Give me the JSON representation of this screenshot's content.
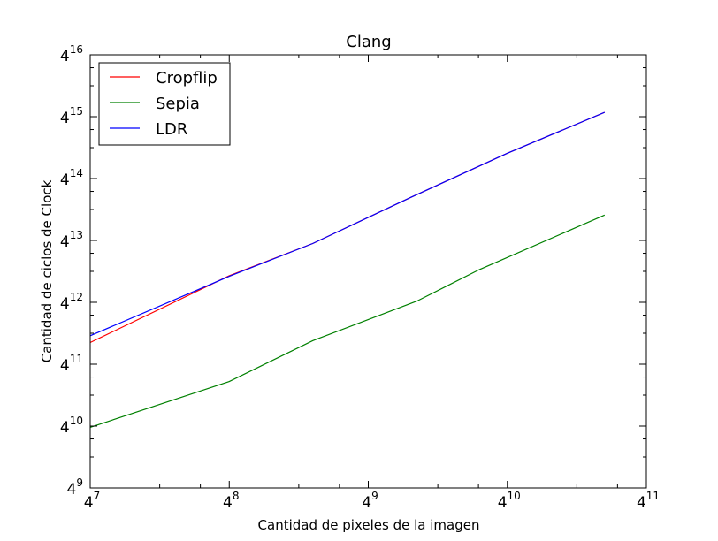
{
  "chart_data": {
    "type": "line",
    "title": "Clang",
    "xlabel": "Cantidad de pixeles de la imagen",
    "ylabel": "Cantidad de ciclos de Clock",
    "scale": "log4",
    "xlim_exp": [
      7,
      11
    ],
    "ylim_exp": [
      9,
      16
    ],
    "grid": false,
    "legend_position": "upper-left",
    "x_ticks": [
      {
        "base": "4",
        "exp": "7"
      },
      {
        "base": "4",
        "exp": "8"
      },
      {
        "base": "4",
        "exp": "9"
      },
      {
        "base": "4",
        "exp": "10"
      },
      {
        "base": "4",
        "exp": "11"
      }
    ],
    "y_ticks": [
      {
        "base": "4",
        "exp": "9"
      },
      {
        "base": "4",
        "exp": "10"
      },
      {
        "base": "4",
        "exp": "11"
      },
      {
        "base": "4",
        "exp": "12"
      },
      {
        "base": "4",
        "exp": "13"
      },
      {
        "base": "4",
        "exp": "14"
      },
      {
        "base": "4",
        "exp": "15"
      },
      {
        "base": "4",
        "exp": "16"
      }
    ],
    "series": [
      {
        "name": "Cropflip",
        "color": "#ff0000",
        "x_exp": [
          7.0,
          8.0,
          8.6,
          9.3,
          10.0,
          10.7
        ],
        "y_exp": [
          11.35,
          12.43,
          12.95,
          13.69,
          14.41,
          15.07
        ]
      },
      {
        "name": "Sepia",
        "color": "#008000",
        "x_exp": [
          7.0,
          8.0,
          8.6,
          9.35,
          9.8,
          10.7
        ],
        "y_exp": [
          9.98,
          10.72,
          11.38,
          12.02,
          12.53,
          13.41
        ]
      },
      {
        "name": "LDR",
        "color": "#0000ff",
        "x_exp": [
          7.0,
          8.0,
          8.6,
          9.3,
          10.0,
          10.7
        ],
        "y_exp": [
          11.46,
          12.42,
          12.95,
          13.69,
          14.41,
          15.07
        ]
      }
    ]
  }
}
